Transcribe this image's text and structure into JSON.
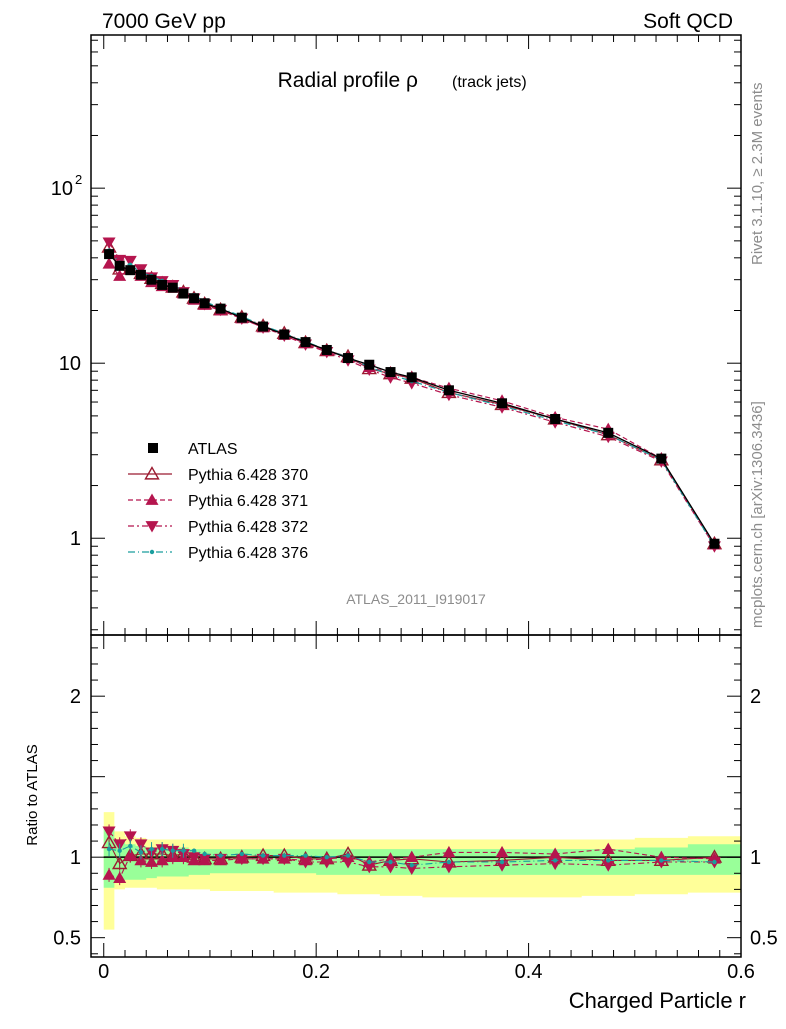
{
  "header": {
    "left": "7000 GeV pp",
    "right": "Soft QCD"
  },
  "side_labels": {
    "rivet": "Rivet 3.1.10, ≥ 2.3M events",
    "mcplots": "mcplots.cern.ch [arXiv:1306.3436]"
  },
  "chart_data": [
    {
      "type": "line",
      "title": "Radial profile",
      "title_symbol": "ρ",
      "title_suffix": "(track jets)",
      "analysis_tag": "ATLAS_2011_I919017",
      "yscale": "log",
      "xlim": [
        -0.012,
        0.6
      ],
      "ylim": [
        0.28,
        750
      ],
      "y_ticks": [
        "1",
        "10",
        "10^2"
      ],
      "x_ticks": [
        "0",
        "0.2",
        "0.4",
        "0.6"
      ],
      "legend_position": "center-left",
      "x": [
        0.005,
        0.015,
        0.025,
        0.035,
        0.045,
        0.055,
        0.065,
        0.075,
        0.085,
        0.095,
        0.11,
        0.13,
        0.15,
        0.17,
        0.19,
        0.21,
        0.23,
        0.25,
        0.27,
        0.29,
        0.325,
        0.375,
        0.425,
        0.475,
        0.525,
        0.575
      ],
      "x_bins": [
        [
          0.0,
          0.01
        ],
        [
          0.01,
          0.02
        ],
        [
          0.02,
          0.03
        ],
        [
          0.03,
          0.04
        ],
        [
          0.04,
          0.05
        ],
        [
          0.05,
          0.06
        ],
        [
          0.06,
          0.07
        ],
        [
          0.07,
          0.08
        ],
        [
          0.08,
          0.09
        ],
        [
          0.09,
          0.1
        ],
        [
          0.1,
          0.12
        ],
        [
          0.12,
          0.14
        ],
        [
          0.14,
          0.16
        ],
        [
          0.16,
          0.18
        ],
        [
          0.18,
          0.2
        ],
        [
          0.2,
          0.22
        ],
        [
          0.22,
          0.24
        ],
        [
          0.24,
          0.26
        ],
        [
          0.26,
          0.28
        ],
        [
          0.28,
          0.3
        ],
        [
          0.3,
          0.35
        ],
        [
          0.35,
          0.4
        ],
        [
          0.4,
          0.45
        ],
        [
          0.45,
          0.5
        ],
        [
          0.5,
          0.55
        ],
        [
          0.55,
          0.6
        ]
      ],
      "series": [
        {
          "name": "ATLAS",
          "style": "data",
          "color": "#000000",
          "values": [
            42,
            36,
            34,
            32,
            30,
            28,
            27,
            25,
            23.5,
            22,
            20.5,
            18.2,
            16.2,
            14.6,
            13.2,
            11.9,
            10.7,
            9.8,
            8.9,
            8.3,
            7.0,
            5.9,
            4.8,
            4.0,
            2.85,
            0.93
          ]
        },
        {
          "name": "Pythia 6.428 370",
          "style": "open-triangle",
          "color": "#9b1b30",
          "values": [
            46,
            34.5,
            34.5,
            32.5,
            30.5,
            28.5,
            27.2,
            25.5,
            23.5,
            21.8,
            20.2,
            18.3,
            16.3,
            14.8,
            13.1,
            11.8,
            10.9,
            9.3,
            8.7,
            8.2,
            6.8,
            5.8,
            4.8,
            3.9,
            2.8,
            0.93
          ]
        },
        {
          "name": "Pythia 6.428 371",
          "style": "filled-triangle",
          "color": "#b5154e",
          "values": [
            37,
            31.5,
            34.5,
            31.5,
            29.0,
            27.5,
            27.0,
            25.0,
            23.0,
            21.5,
            20.0,
            18.0,
            16.0,
            14.5,
            13.0,
            11.8,
            10.7,
            9.5,
            8.8,
            8.3,
            7.2,
            6.1,
            4.9,
            4.2,
            2.85,
            0.92
          ]
        },
        {
          "name": "Pythia 6.428 372",
          "style": "filled-triangle-down",
          "color": "#b5154e",
          "values": [
            49,
            39,
            38.5,
            34.5,
            31.0,
            29.5,
            28.0,
            25.5,
            23.5,
            21.8,
            20.2,
            18.0,
            16.0,
            14.4,
            12.8,
            11.6,
            10.4,
            9.2,
            8.3,
            7.7,
            6.6,
            5.6,
            4.6,
            3.8,
            2.75,
            0.9
          ]
        },
        {
          "name": "Pythia 6.428 376",
          "style": "dot",
          "color": "#1a9e9e",
          "values": [
            44,
            37.5,
            36.5,
            33.0,
            31.5,
            29.5,
            28.0,
            26.0,
            24.5,
            22.5,
            20.7,
            18.5,
            16.4,
            14.8,
            13.3,
            11.9,
            10.8,
            9.5,
            8.6,
            7.9,
            6.8,
            5.7,
            4.7,
            3.9,
            2.8,
            0.9
          ]
        }
      ]
    },
    {
      "type": "line",
      "ylabel": "Ratio to ATLAS",
      "xlabel": "Charged Particle r",
      "ylim": [
        0.38,
        2.38
      ],
      "y_ticks": [
        "0.5",
        "1",
        "2"
      ],
      "x_ticks": [
        "0",
        "0.2",
        "0.4",
        "0.6"
      ],
      "band_stat_lower": [
        0.81,
        0.85,
        0.86,
        0.86,
        0.87,
        0.88,
        0.88,
        0.88,
        0.89,
        0.89,
        0.9,
        0.9,
        0.9,
        0.9,
        0.9,
        0.89,
        0.89,
        0.89,
        0.89,
        0.89,
        0.89,
        0.89,
        0.89,
        0.89,
        0.89,
        0.89
      ],
      "band_stat_upper": [
        1.18,
        1.1,
        1.08,
        1.07,
        1.06,
        1.06,
        1.06,
        1.06,
        1.05,
        1.05,
        1.05,
        1.05,
        1.05,
        1.05,
        1.05,
        1.05,
        1.05,
        1.05,
        1.05,
        1.05,
        1.05,
        1.05,
        1.05,
        1.05,
        1.06,
        1.08
      ],
      "band_total_lower": [
        0.55,
        0.8,
        0.81,
        0.81,
        0.81,
        0.8,
        0.8,
        0.8,
        0.8,
        0.8,
        0.79,
        0.79,
        0.79,
        0.78,
        0.78,
        0.78,
        0.77,
        0.77,
        0.76,
        0.76,
        0.75,
        0.75,
        0.75,
        0.76,
        0.77,
        0.78
      ],
      "band_total_upper": [
        1.28,
        1.16,
        1.13,
        1.12,
        1.11,
        1.11,
        1.11,
        1.11,
        1.11,
        1.11,
        1.11,
        1.11,
        1.11,
        1.11,
        1.11,
        1.11,
        1.11,
        1.11,
        1.11,
        1.11,
        1.11,
        1.11,
        1.11,
        1.11,
        1.12,
        1.13
      ],
      "series": [
        {
          "name": "Pythia 6.428 370",
          "values": [
            1.09,
            0.96,
            1.01,
            1.02,
            1.02,
            1.02,
            1.01,
            1.02,
            1.0,
            0.99,
            0.99,
            1.0,
            1.01,
            1.01,
            0.99,
            0.99,
            1.02,
            0.95,
            0.98,
            0.99,
            0.97,
            0.98,
            1.0,
            0.98,
            0.98,
            1.0
          ]
        },
        {
          "name": "Pythia 6.428 371",
          "values": [
            0.89,
            0.87,
            1.01,
            0.98,
            0.97,
            0.98,
            1.0,
            1.0,
            0.98,
            0.98,
            0.98,
            0.99,
            0.99,
            0.99,
            0.98,
            0.99,
            1.0,
            0.97,
            0.99,
            1.0,
            1.03,
            1.03,
            1.02,
            1.05,
            1.0,
            0.99
          ]
        },
        {
          "name": "Pythia 6.428 372",
          "values": [
            1.16,
            1.08,
            1.13,
            1.08,
            1.03,
            1.05,
            1.04,
            1.02,
            1.0,
            0.99,
            0.99,
            0.99,
            0.99,
            0.99,
            0.97,
            0.97,
            0.97,
            0.94,
            0.94,
            0.93,
            0.94,
            0.95,
            0.96,
            0.95,
            0.97,
            0.97
          ]
        },
        {
          "name": "Pythia 6.428 376",
          "values": [
            1.05,
            1.04,
            1.07,
            1.03,
            1.05,
            1.05,
            1.04,
            1.04,
            1.04,
            1.02,
            1.01,
            1.02,
            1.01,
            1.01,
            1.01,
            1.0,
            1.01,
            0.97,
            0.97,
            0.95,
            0.97,
            0.97,
            0.98,
            0.98,
            0.98,
            0.97
          ]
        }
      ]
    }
  ]
}
